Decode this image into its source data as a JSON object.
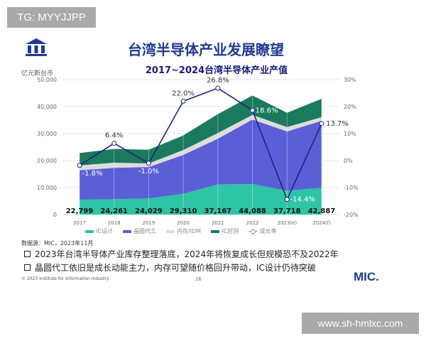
{
  "watermark_top": "TG: MYYJJPP",
  "watermark_bottom": "www.sh-hmlxc.com",
  "slide": {
    "title": "台湾半导体产业发展瞭望",
    "source": "数据源：MIC，2023年11月",
    "bullets": [
      "2023年台湾半导体产业库存整理落底，2024年将恢复成长但规模恐不及2022年",
      "晶圆代工依旧是成长动能主力，内存可望随价格回升带动，IC设计仍待突破"
    ],
    "copyright": "© 2023 Institute for Information Industry",
    "page_number": "26",
    "logo": "MIC."
  },
  "chart_data": {
    "type": "area",
    "stacked": true,
    "title": "2017~2024台湾半导体产业产值",
    "ylabel": "亿元新台币",
    "categories": [
      "2017",
      "2018",
      "2019",
      "2020",
      "2021",
      "2022",
      "2023(e)",
      "2024(f)"
    ],
    "ylim": [
      0,
      50000
    ],
    "yticks": [
      "0",
      "10,000",
      "20,000",
      "30,000",
      "40,000",
      "50,000"
    ],
    "y2lim": [
      -20,
      30
    ],
    "y2ticks": [
      "-20%",
      "-10%",
      "0%",
      "10%",
      "20%",
      "30%"
    ],
    "grid": true,
    "legend_position": "bottom",
    "series": [
      {
        "name": "IC设计",
        "color": "#2ec4a6",
        "values": [
          5500,
          5700,
          6000,
          7700,
          11200,
          11300,
          8800,
          9900
        ]
      },
      {
        "name": "晶圆代工",
        "color": "#5b5fd6",
        "values": [
          10900,
          11600,
          11600,
          14400,
          16900,
          23900,
          22000,
          24800
        ]
      },
      {
        "name": "内存/IDM",
        "color": "#dcdcdc",
        "values": [
          1800,
          1900,
          1300,
          1800,
          2100,
          1700,
          1600,
          1400
        ]
      },
      {
        "name": "IC封测",
        "color": "#1b7a5e",
        "values": [
          4600,
          5100,
          5100,
          5400,
          7000,
          7200,
          5300,
          6800
        ]
      }
    ],
    "totals": [
      "22,799",
      "24,261",
      "24,029",
      "29,310",
      "37,167",
      "44,088",
      "37,718",
      "42,887"
    ],
    "growth": {
      "name": "成长率",
      "color": "#1a237e",
      "values": [
        -1.8,
        6.4,
        -1.0,
        22.0,
        26.8,
        18.6,
        -14.4,
        13.7
      ],
      "labels": [
        "-1.8%",
        "6.4%",
        "-1.0%",
        "22.0%",
        "26.8%",
        "18.6%",
        "-14.4%",
        "13.7%"
      ]
    }
  }
}
